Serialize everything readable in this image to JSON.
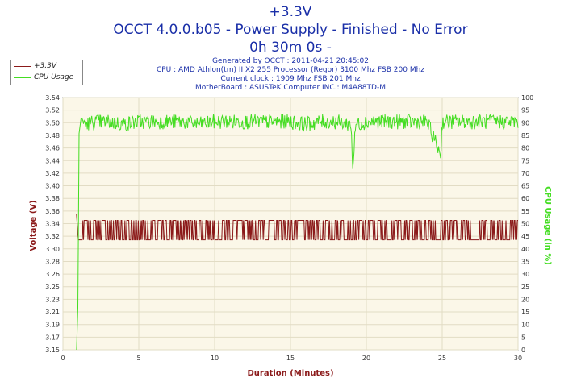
{
  "title": {
    "line1": "+3.3V",
    "line2": "OCCT 4.0.0.b05 - Power Supply - Finished - No Error",
    "line3": "0h 30m 0s -"
  },
  "info": {
    "generated": "Generated by OCCT : 2011-04-21 20:45:02",
    "cpu": "CPU : AMD Athlon(tm) II X2 255 Processor (Regor) 3100 Mhz FSB 200 Mhz",
    "clock": "Current clock : 1909 Mhz FSB 201 Mhz",
    "board": "MotherBoard : ASUSTeK Computer INC.: M4A88TD-M"
  },
  "legend": [
    {
      "label": "+3.3V",
      "color": "#8b1a1a"
    },
    {
      "label": "CPU Usage",
      "color": "#44dd22"
    }
  ],
  "chart_data": {
    "type": "line",
    "title": "+3.3V",
    "xlabel": "Duration (Minutes)",
    "ylabel_left": "Voltage (V)",
    "ylabel_right": "CPU Usage (in %)",
    "xlim": [
      0,
      30
    ],
    "ylim_left": [
      3.15,
      3.54
    ],
    "ylim_right": [
      0,
      100
    ],
    "x_ticks": [
      "0",
      "5",
      "10",
      "15",
      "20",
      "25",
      "30"
    ],
    "y_left_ticks": [
      "3.15",
      "3.17",
      "3.19",
      "3.21",
      "3.23",
      "3.25",
      "3.26",
      "3.28",
      "3.30",
      "3.32",
      "3.34",
      "3.36",
      "3.38",
      "3.40",
      "3.42",
      "3.44",
      "3.46",
      "3.48",
      "3.50",
      "3.52",
      "3.54"
    ],
    "y_right_ticks": [
      "0",
      "5",
      "10",
      "15",
      "20",
      "25",
      "30",
      "35",
      "40",
      "45",
      "50",
      "55",
      "60",
      "65",
      "70",
      "75",
      "80",
      "85",
      "90",
      "95",
      "100"
    ],
    "series": [
      {
        "name": "+3.3V",
        "color": "#8b1a1a",
        "axis": "left",
        "x": [
          0.6,
          0.9,
          1.0,
          1.3,
          2.0,
          3.0,
          4.0,
          5.0,
          6.0,
          7.0,
          8.0,
          9.0,
          10.0,
          11.0,
          12.0,
          13.0,
          14.0,
          15.0,
          16.0,
          17.0,
          18.0,
          19.0,
          20.0,
          21.0,
          22.0,
          23.0,
          24.0,
          25.0,
          26.0,
          27.0,
          28.0,
          29.0,
          30.0
        ],
        "y": [
          3.36,
          3.36,
          3.32,
          3.32,
          3.32,
          3.35,
          3.33,
          3.33,
          3.35,
          3.33,
          3.32,
          3.34,
          3.34,
          3.32,
          3.34,
          3.34,
          3.34,
          3.33,
          3.33,
          3.34,
          3.33,
          3.34,
          3.33,
          3.33,
          3.35,
          3.34,
          3.33,
          3.34,
          3.34,
          3.34,
          3.32,
          3.32,
          3.32
        ],
        "band": [
          3.31,
          3.35
        ]
      },
      {
        "name": "CPU Usage",
        "color": "#44dd22",
        "axis": "right",
        "x": [
          0.9,
          1.0,
          1.05,
          1.2,
          1.5,
          2.0,
          3.0,
          4.0,
          5.0,
          6.0,
          7.0,
          8.0,
          9.0,
          10.0,
          11.0,
          12.0,
          13.0,
          14.0,
          15.0,
          16.0,
          17.0,
          18.0,
          19.0,
          19.1,
          19.3,
          20.0,
          21.0,
          22.0,
          23.0,
          24.0,
          24.9,
          25.0,
          26.0,
          27.0,
          28.0,
          29.0,
          30.0
        ],
        "y": [
          0,
          20,
          85,
          92,
          90,
          91,
          91,
          90,
          91,
          91,
          91,
          91,
          90,
          91,
          91,
          91,
          91,
          91,
          91,
          90,
          91,
          91,
          90,
          72,
          90,
          91,
          91,
          91,
          91,
          91,
          78,
          91,
          91,
          91,
          91,
          91,
          91
        ]
      }
    ],
    "grid": true,
    "legend_position": "top-left"
  }
}
